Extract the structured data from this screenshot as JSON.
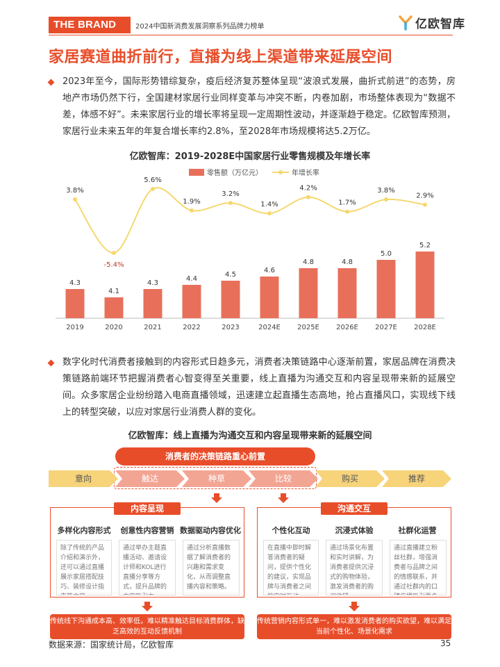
{
  "header": {
    "brand": "THE BRAND",
    "report_title": "2024中国新消费发展洞察系列品牌力榜单",
    "logo_text": "亿欧智库",
    "logo_color": "#e84d2a"
  },
  "main_title": "家居赛道曲折前行，直播为线上渠道带来延展空间",
  "para1": "2023年至今，国际形势错综复杂，疫后经济复苏整体呈现“波浪式发展，曲折式前进”的态势，房地产市场仍然下行，全国建材家居行业同样变革与冲突不断，内卷加剧，市场整体表现为“数据不差，体感不好”。未来家居行业的增长率将呈现一定周期性波动，并逐渐趋于稳定。亿欧智库预测，家居行业未来五年的年复合增长率约2.8%，至2028年市场规模将达5.2万亿。",
  "chart_title": "亿欧智库：2019-2028E中国家居行业零售规模及年增长率",
  "chart_data": {
    "type": "bar",
    "categories": [
      "2019",
      "2020",
      "2021",
      "2022",
      "2023",
      "2024E",
      "2025E",
      "2026E",
      "2027E",
      "2028E"
    ],
    "series": [
      {
        "name": "零售额（万亿元）",
        "type": "bar",
        "values": [
          4.3,
          4.1,
          4.3,
          4.4,
          4.5,
          4.6,
          4.8,
          4.8,
          5.0,
          5.2
        ],
        "labels": [
          "4.3",
          "4.1",
          "4.3",
          "4.4",
          "4.5",
          "4.6",
          "4.8",
          "4.8",
          "5.0",
          "5.2"
        ],
        "color": "#e8705a"
      },
      {
        "name": "年增长率",
        "type": "line",
        "values": [
          3.8,
          -5.4,
          5.6,
          1.9,
          3.2,
          1.4,
          4.2,
          1.7,
          3.8,
          2.9
        ],
        "labels": [
          "3.8%",
          "-5.4%",
          "5.6%",
          "1.9%",
          "3.2%",
          "1.4%",
          "4.2%",
          "1.7%",
          "3.8%",
          "2.9%"
        ],
        "color": "#f5d86e"
      }
    ],
    "legend_position": "top",
    "grid": false
  },
  "para2": "数字化时代消费者接触到的内容形式日趋多元，消费者决策链路中心逐渐前置，家居品牌在消费决策链路前端环节把握消费者心智变得至关重要，线上直播为沟通交互和内容呈现带来新的延展空间。众多家居企业纷纷踏入电商直播领域，迅速建立起直播生态高地，抢占直播风口，实现线下线上的转型突破，以应对家居行业消费人群的变化。",
  "diagram": {
    "title": "亿欧智库：线上直播为沟通交互和内容呈现带来新的延展空间",
    "banner": "消费者的决策链路重心前置",
    "stages": [
      "意向",
      "触达",
      "种草",
      "比较",
      "购买",
      "推荐"
    ],
    "box_left": {
      "title": "内容呈现",
      "cols": [
        {
          "title": "多样化内容形式",
          "text": "除了传统的产品介绍和演示外，还可以通过直播展示家居搭配技巧、装修设计指南等内容。"
        },
        {
          "title": "创意性内容营销",
          "text": "通过举办主题直播活动、邀请设计师和KOL进行直播分享等方式，提升品牌的内容吸引力。"
        },
        {
          "title": "数据驱动内容优化",
          "text": "通过分析直播数据了解消费者的兴趣和需求变化，从而调整直播内容和策略。"
        }
      ],
      "bottom": "传统线下沟通成本高、效率低，难以精准触达目标消费群体，缺乏高效的互动反馈机制"
    },
    "box_right": {
      "title": "沟通交互",
      "cols": [
        {
          "title": "个性化互动",
          "text": "在直播中即时解答消费者的疑问，提供个性化的建议，实现品牌与消费者之间的实时互动。"
        },
        {
          "title": "沉浸式体验",
          "text": "通过场景化布置和实时讲解，为消费者提供沉浸式的购物体验，激发消费者的购买欲望。"
        },
        {
          "title": "社群化运营",
          "text": "通过直播建立粉丝社群，增强消费者与品牌之间的情感联系，并通过社群内的口碑传播吸引更多潜在消费者。"
        }
      ],
      "bottom": "传统营销内容形式单一，难以激发消费者的购买欲望，难以满足当前个性化、场景化需求"
    }
  },
  "footer": {
    "source": "数据来源：国家统计局，亿欧智库",
    "page": "35"
  }
}
